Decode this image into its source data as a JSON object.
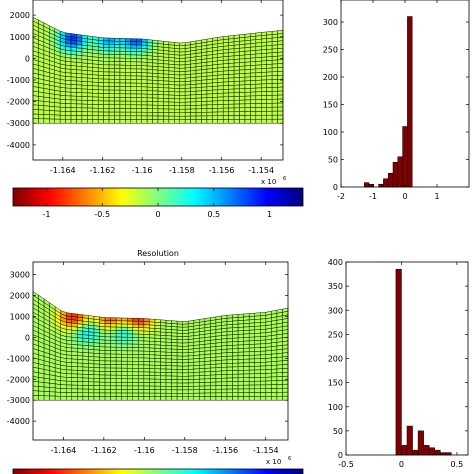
{
  "colorbar": {
    "ticks": [
      "-1",
      "-0.5",
      "0",
      "0.5",
      "1"
    ],
    "tick_values": [
      -1,
      -0.5,
      0,
      0.5,
      1
    ],
    "range": [
      -1.3,
      1.3
    ]
  },
  "chart_data": [
    {
      "type": "heatmap",
      "title": "",
      "x_ticks": [
        "-1.164",
        "-1.162",
        "-1.16",
        "-1.158",
        "-1.156",
        "-1.154"
      ],
      "x_tick_values": [
        -1.164,
        -1.162,
        -1.16,
        -1.158,
        -1.156,
        -1.154
      ],
      "x_multiplier": "x 10",
      "x_multiplier_exp": "6",
      "xlim": [
        -1.1655,
        -1.1529
      ],
      "y_ticks": [
        "2000",
        "1000",
        "0",
        "-1000",
        "-2000",
        "-3000",
        "-4000"
      ],
      "y_tick_values": [
        2000,
        1000,
        0,
        -1000,
        -2000,
        -3000,
        -4000
      ],
      "ylim": [
        -4700,
        2700
      ],
      "mesh_bottom": -3000,
      "surface": [
        [
          -1.1655,
          1900
        ],
        [
          -1.164,
          1200
        ],
        [
          -1.162,
          950
        ],
        [
          -1.16,
          900
        ],
        [
          -1.158,
          700
        ],
        [
          -1.156,
          1000
        ],
        [
          -1.154,
          1200
        ],
        [
          -1.1529,
          1300
        ]
      ],
      "field_base_value": 0.15,
      "anomalies": [
        {
          "x": -1.1635,
          "y": 900,
          "value": -0.85
        },
        {
          "x": -1.1617,
          "y": 850,
          "value": -0.5
        },
        {
          "x": -1.1603,
          "y": 850,
          "value": -0.75
        }
      ],
      "grid": true
    },
    {
      "type": "bar",
      "title": "",
      "bin_centers": [
        -1.35,
        -1.2,
        -1.05,
        -0.9,
        -0.75,
        -0.6,
        -0.45,
        -0.3,
        -0.15,
        0.0,
        0.15,
        0.3,
        0.45
      ],
      "values": [
        0,
        8,
        5,
        0,
        5,
        15,
        25,
        45,
        55,
        110,
        310,
        0,
        0
      ],
      "bar_color": "#800000",
      "xlim": [
        -2,
        2
      ],
      "ylim": [
        0,
        340
      ],
      "x_ticks": [
        "-2",
        "-1",
        "0",
        "1"
      ],
      "x_tick_values": [
        -2,
        -1,
        0,
        1
      ],
      "y_ticks": [
        "0",
        "50",
        "100",
        "150",
        "200",
        "250",
        "300"
      ],
      "y_tick_values": [
        0,
        50,
        100,
        150,
        200,
        250,
        300
      ]
    },
    {
      "type": "heatmap",
      "title": "Resolution",
      "x_ticks": [
        "-1.164",
        "-1.162",
        "-1.16",
        "-1.158",
        "-1.156",
        "-1.154"
      ],
      "x_tick_values": [
        -1.164,
        -1.162,
        -1.16,
        -1.158,
        -1.156,
        -1.154
      ],
      "x_multiplier": "x 10",
      "x_multiplier_exp": "6",
      "xlim": [
        -1.1655,
        -1.1529
      ],
      "y_ticks": [
        "3000",
        "2000",
        "1000",
        "0",
        "-1000",
        "-2000",
        "-3000",
        "-4000"
      ],
      "y_tick_values": [
        3000,
        2000,
        1000,
        0,
        -1000,
        -2000,
        -3000,
        -4000
      ],
      "ylim": [
        -4900,
        3600
      ],
      "mesh_bottom": -3000,
      "surface": [
        [
          -1.1655,
          2200
        ],
        [
          -1.164,
          1200
        ],
        [
          -1.162,
          950
        ],
        [
          -1.16,
          900
        ],
        [
          -1.158,
          750
        ],
        [
          -1.156,
          1050
        ],
        [
          -1.154,
          1200
        ],
        [
          -1.1529,
          1400
        ]
      ],
      "field_base_value": 0.1,
      "anomalies": [
        {
          "x": -1.1635,
          "y": 950,
          "value": 0.9
        },
        {
          "x": -1.1617,
          "y": 900,
          "value": 0.75
        },
        {
          "x": -1.1603,
          "y": 900,
          "value": 0.9
        },
        {
          "x": -1.1628,
          "y": 250,
          "value": -0.35
        },
        {
          "x": -1.161,
          "y": 250,
          "value": -0.3
        }
      ],
      "grid": true
    },
    {
      "type": "bar",
      "title": "",
      "bin_centers": [
        -0.025,
        0.025,
        0.075,
        0.125,
        0.175,
        0.225,
        0.275,
        0.325,
        0.375,
        0.425,
        0.475,
        0.525
      ],
      "values": [
        385,
        20,
        60,
        10,
        50,
        20,
        15,
        10,
        5,
        5,
        0,
        0
      ],
      "bar_color": "#800000",
      "xlim": [
        -0.5,
        0.6
      ],
      "ylim": [
        0,
        400
      ],
      "x_ticks": [
        "-0.5",
        "0",
        "0.5"
      ],
      "x_tick_values": [
        -0.5,
        0,
        0.5
      ],
      "y_ticks": [
        "0",
        "50",
        "100",
        "150",
        "200",
        "250",
        "300",
        "350",
        "400"
      ],
      "y_tick_values": [
        0,
        50,
        100,
        150,
        200,
        250,
        300,
        350,
        400
      ]
    }
  ]
}
